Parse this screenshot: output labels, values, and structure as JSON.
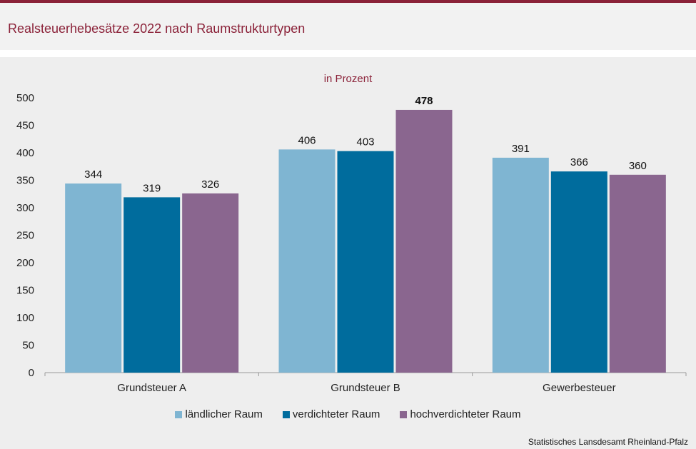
{
  "title": "Realsteuerhebesätze 2022 nach Raumstrukturtypen",
  "source": "Statistisches Lansdesamt Rheinland-Pfalz",
  "colors": {
    "accent": "#8b2239",
    "background": "#eeeeee"
  },
  "chart_data": {
    "type": "bar",
    "subtitle": "in Prozent",
    "categories": [
      "Grundsteuer A",
      "Grundsteuer B",
      "Gewerbesteuer"
    ],
    "series": [
      {
        "name": "ländlicher Raum",
        "color": "#7fb5d2",
        "values": [
          344,
          406,
          391
        ]
      },
      {
        "name": "verdichteter Raum",
        "color": "#006c9d",
        "values": [
          319,
          403,
          366
        ]
      },
      {
        "name": "hochverdichteter Raum",
        "color": "#8a668f",
        "values": [
          326,
          478,
          360
        ]
      }
    ],
    "highlight": {
      "series": 2,
      "category": 1
    },
    "ylim": [
      0,
      500
    ],
    "yticks": [
      0,
      50,
      100,
      150,
      200,
      250,
      300,
      350,
      400,
      450,
      500
    ],
    "grid": false,
    "legend_position": "bottom"
  }
}
